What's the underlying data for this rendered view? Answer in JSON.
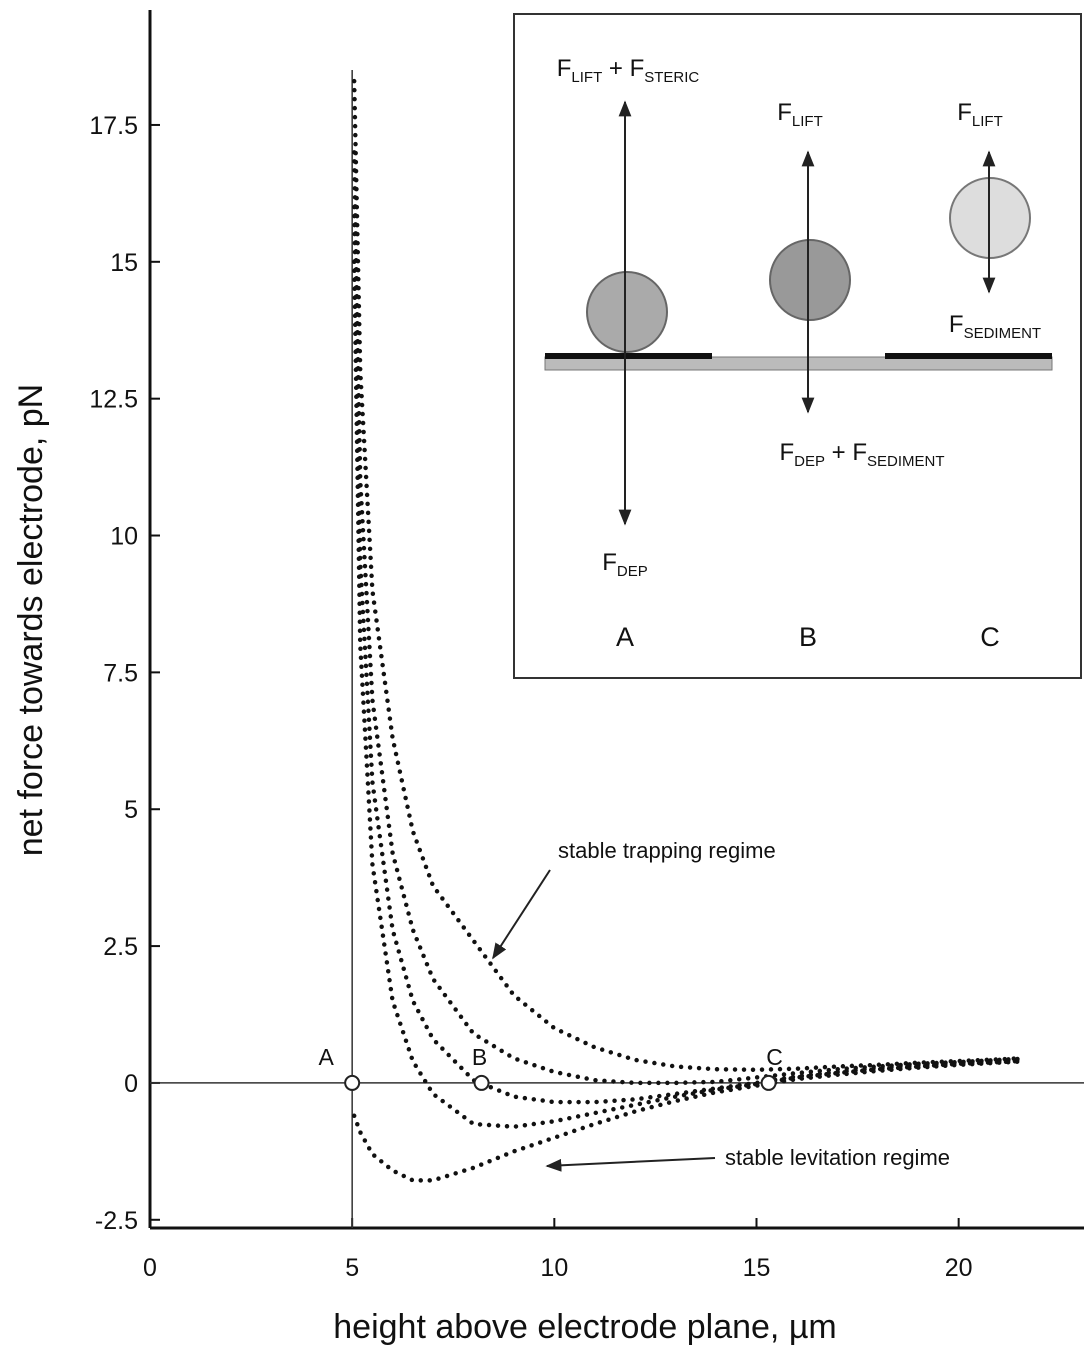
{
  "chart_data": {
    "type": "line",
    "x_label": "height above electrode plane, µm",
    "y_label": "net force towards electrode, pN",
    "xlim": [
      0,
      23.1
    ],
    "ylim": [
      -2.65,
      19.6
    ],
    "xticks": [
      0,
      5,
      10,
      15,
      20
    ],
    "yticks": [
      -2.5,
      0,
      2.5,
      5,
      7.5,
      10,
      12.5,
      15,
      17.5
    ],
    "vlines": [
      5
    ],
    "hlines": [
      0
    ],
    "line_style": "dotted",
    "x": [
      5.05,
      5.2,
      5.5,
      6,
      6.5,
      7,
      8,
      9,
      10,
      11,
      12,
      13,
      14,
      15,
      16,
      17,
      18,
      19,
      20,
      21,
      21.5
    ],
    "series": [
      {
        "color": "#111111",
        "values": [
          18.3,
          13,
          9,
          6.3,
          4.6,
          3.6,
          2.6,
          1.6,
          1.0,
          0.65,
          0.42,
          0.3,
          0.25,
          0.24,
          0.26,
          0.3,
          0.33,
          0.37,
          0.4,
          0.43,
          0.45
        ]
      },
      {
        "color": "#111111",
        "values": [
          17,
          11,
          7,
          4.2,
          2.8,
          1.9,
          0.9,
          0.45,
          0.2,
          0.05,
          0,
          0,
          0.02,
          0.1,
          0.18,
          0.25,
          0.3,
          0.35,
          0.38,
          0.42,
          0.44
        ]
      },
      {
        "color": "#111111",
        "values": [
          16,
          9.5,
          5.5,
          2.8,
          1.5,
          0.8,
          0.05,
          -0.25,
          -0.35,
          -0.35,
          -0.3,
          -0.2,
          -0.1,
          0,
          0.12,
          0.2,
          0.27,
          0.32,
          0.36,
          0.4,
          0.42
        ]
      },
      {
        "color": "#111111",
        "values": [
          15,
          8,
          4,
          1.5,
          0.4,
          -0.2,
          -0.75,
          -0.8,
          -0.7,
          -0.55,
          -0.4,
          -0.25,
          -0.12,
          -0.02,
          0.1,
          0.18,
          0.25,
          0.3,
          0.35,
          0.38,
          0.4
        ]
      },
      {
        "color": "#111111",
        "values": [
          -0.6,
          -0.9,
          -1.3,
          -1.6,
          -1.78,
          -1.78,
          -1.55,
          -1.25,
          -1.0,
          -0.75,
          -0.52,
          -0.33,
          -0.17,
          -0.05,
          0.07,
          0.15,
          0.22,
          0.28,
          0.33,
          0.37,
          0.39
        ]
      }
    ],
    "points": [
      {
        "label": "A",
        "x": 5,
        "y": 0
      },
      {
        "label": "B",
        "x": 8.2,
        "y": 0
      },
      {
        "label": "C",
        "x": 15.3,
        "y": 0
      }
    ],
    "annotations": [
      "stable trapping regime",
      "stable levitation regime"
    ]
  },
  "inset": {
    "labels": [
      [
        "F",
        "LIFT",
        " + F",
        "STERIC"
      ],
      [
        "F",
        "LIFT"
      ],
      [
        "F",
        "LIFT"
      ],
      [
        "F",
        "SEDIMENT"
      ],
      [
        "F",
        "DEP",
        " + F",
        "SEDIMENT"
      ],
      [
        "F",
        "DEP"
      ]
    ],
    "panels": [
      "A",
      "B",
      "C"
    ]
  }
}
